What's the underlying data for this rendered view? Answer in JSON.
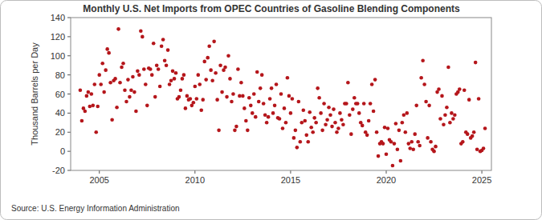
{
  "chart_data": {
    "type": "scatter",
    "title": "Monthly U.S. Net Imports from OPEC Countries of Gasoline Blending Components",
    "y_label": "Thousand Barrels per Day",
    "source": "Source: U.S. Energy Information Administration",
    "color": "#b5161b",
    "marker": "circle",
    "grid": false,
    "xlim": [
      2003.5,
      2025.5
    ],
    "ylim": [
      -20,
      140
    ],
    "xticks": [
      2005,
      2010,
      2015,
      2020,
      2025
    ],
    "yticks": [
      -20,
      0,
      20,
      40,
      60,
      80,
      100,
      120,
      140
    ],
    "x": [
      2004,
      2004.083,
      2004.167,
      2004.25,
      2004.333,
      2004.417,
      2004.5,
      2004.583,
      2004.667,
      2004.75,
      2004.833,
      2004.917,
      2005,
      2005.083,
      2005.167,
      2005.25,
      2005.333,
      2005.417,
      2005.5,
      2005.583,
      2005.667,
      2005.75,
      2005.833,
      2005.917,
      2006,
      2006.083,
      2006.167,
      2006.25,
      2006.333,
      2006.417,
      2006.5,
      2006.583,
      2006.667,
      2006.75,
      2006.833,
      2006.917,
      2007,
      2007.083,
      2007.167,
      2007.25,
      2007.333,
      2007.417,
      2007.5,
      2007.583,
      2007.667,
      2007.75,
      2007.833,
      2007.917,
      2008,
      2008.083,
      2008.167,
      2008.25,
      2008.333,
      2008.417,
      2008.5,
      2008.583,
      2008.667,
      2008.75,
      2008.833,
      2008.917,
      2009,
      2009.083,
      2009.167,
      2009.25,
      2009.333,
      2009.417,
      2009.5,
      2009.583,
      2009.667,
      2009.75,
      2009.833,
      2009.917,
      2010,
      2010.083,
      2010.167,
      2010.25,
      2010.333,
      2010.417,
      2010.5,
      2010.583,
      2010.667,
      2010.75,
      2010.833,
      2010.917,
      2011,
      2011.083,
      2011.167,
      2011.25,
      2011.333,
      2011.417,
      2011.5,
      2011.583,
      2011.667,
      2011.75,
      2011.833,
      2011.917,
      2012,
      2012.083,
      2012.167,
      2012.25,
      2012.333,
      2012.417,
      2012.5,
      2012.583,
      2012.667,
      2012.75,
      2012.833,
      2012.917,
      2013,
      2013.083,
      2013.167,
      2013.25,
      2013.333,
      2013.417,
      2013.5,
      2013.583,
      2013.667,
      2013.75,
      2013.833,
      2013.917,
      2014,
      2014.083,
      2014.167,
      2014.25,
      2014.333,
      2014.417,
      2014.5,
      2014.583,
      2014.667,
      2014.75,
      2014.833,
      2014.917,
      2015,
      2015.083,
      2015.167,
      2015.25,
      2015.333,
      2015.417,
      2015.5,
      2015.583,
      2015.667,
      2015.75,
      2015.833,
      2015.917,
      2016,
      2016.083,
      2016.167,
      2016.25,
      2016.333,
      2016.417,
      2016.5,
      2016.583,
      2016.667,
      2016.75,
      2016.833,
      2016.917,
      2017,
      2017.083,
      2017.167,
      2017.25,
      2017.333,
      2017.417,
      2017.5,
      2017.583,
      2017.667,
      2017.75,
      2017.833,
      2017.917,
      2018,
      2018.083,
      2018.167,
      2018.25,
      2018.333,
      2018.417,
      2018.5,
      2018.583,
      2018.667,
      2018.75,
      2018.833,
      2018.917,
      2019,
      2019.083,
      2019.167,
      2019.25,
      2019.333,
      2019.417,
      2019.5,
      2019.583,
      2019.667,
      2019.75,
      2019.833,
      2019.917,
      2020,
      2020.083,
      2020.167,
      2020.25,
      2020.333,
      2020.417,
      2020.5,
      2020.583,
      2020.667,
      2020.75,
      2020.833,
      2020.917,
      2021,
      2021.083,
      2021.167,
      2021.25,
      2021.333,
      2021.417,
      2021.5,
      2021.583,
      2021.667,
      2021.75,
      2021.833,
      2021.917,
      2022,
      2022.083,
      2022.167,
      2022.25,
      2022.333,
      2022.417,
      2022.5,
      2022.583,
      2022.667,
      2022.75,
      2022.833,
      2022.917,
      2023,
      2023.083,
      2023.167,
      2023.25,
      2023.333,
      2023.417,
      2023.5,
      2023.583,
      2023.667,
      2023.75,
      2023.833,
      2023.917,
      2024,
      2024.083,
      2024.167,
      2024.25,
      2024.333,
      2024.417,
      2024.5,
      2024.583,
      2024.667,
      2024.75,
      2024.833,
      2024.917,
      2025,
      2025.083,
      2025.167
    ],
    "values": [
      64,
      32,
      45,
      42,
      58,
      62,
      47,
      60,
      48,
      70,
      20,
      47,
      80,
      70,
      92,
      62,
      85,
      107,
      103,
      72,
      33,
      74,
      76,
      46,
      128,
      72,
      88,
      92,
      64,
      52,
      75,
      57,
      64,
      78,
      62,
      42,
      84,
      80,
      126,
      120,
      86,
      70,
      48,
      87,
      86,
      80,
      113,
      57,
      90,
      86,
      68,
      110,
      117,
      95,
      90,
      106,
      70,
      74,
      84,
      76,
      82,
      55,
      57,
      64,
      76,
      80,
      45,
      58,
      54,
      55,
      48,
      51,
      68,
      55,
      80,
      70,
      43,
      54,
      94,
      75,
      98,
      110,
      85,
      74,
      115,
      82,
      54,
      22,
      90,
      62,
      85,
      88,
      57,
      100,
      76,
      52,
      60,
      22,
      26,
      86,
      58,
      72,
      58,
      45,
      32,
      22,
      56,
      48,
      40,
      60,
      36,
      83,
      52,
      66,
      80,
      50,
      38,
      30,
      36,
      55,
      66,
      40,
      48,
      70,
      35,
      34,
      60,
      24,
      45,
      30,
      77,
      58,
      40,
      55,
      14,
      22,
      4,
      52,
      10,
      30,
      43,
      32,
      17,
      10,
      41,
      25,
      20,
      35,
      30,
      66,
      56,
      40,
      22,
      50,
      28,
      33,
      46,
      38,
      26,
      44,
      30,
      20,
      24,
      40,
      33,
      28,
      50,
      50,
      72,
      38,
      18,
      44,
      56,
      50,
      50,
      40,
      30,
      27,
      50,
      20,
      17,
      32,
      50,
      70,
      42,
      75,
      20,
      -5,
      8,
      10,
      8,
      25,
      -3,
      24,
      12,
      10,
      -15,
      8,
      29,
      2,
      22,
      -10,
      30,
      38,
      20,
      40,
      8,
      3,
      10,
      2,
      18,
      48,
      10,
      6,
      77,
      95,
      70,
      52,
      14,
      48,
      10,
      2,
      0,
      5,
      62,
      65,
      34,
      58,
      28,
      38,
      46,
      88,
      30,
      40,
      34,
      38,
      60,
      62,
      65,
      8,
      10,
      64,
      20,
      18,
      54,
      14,
      16,
      20,
      93,
      2,
      55,
      0,
      1,
      3,
      24
    ]
  }
}
